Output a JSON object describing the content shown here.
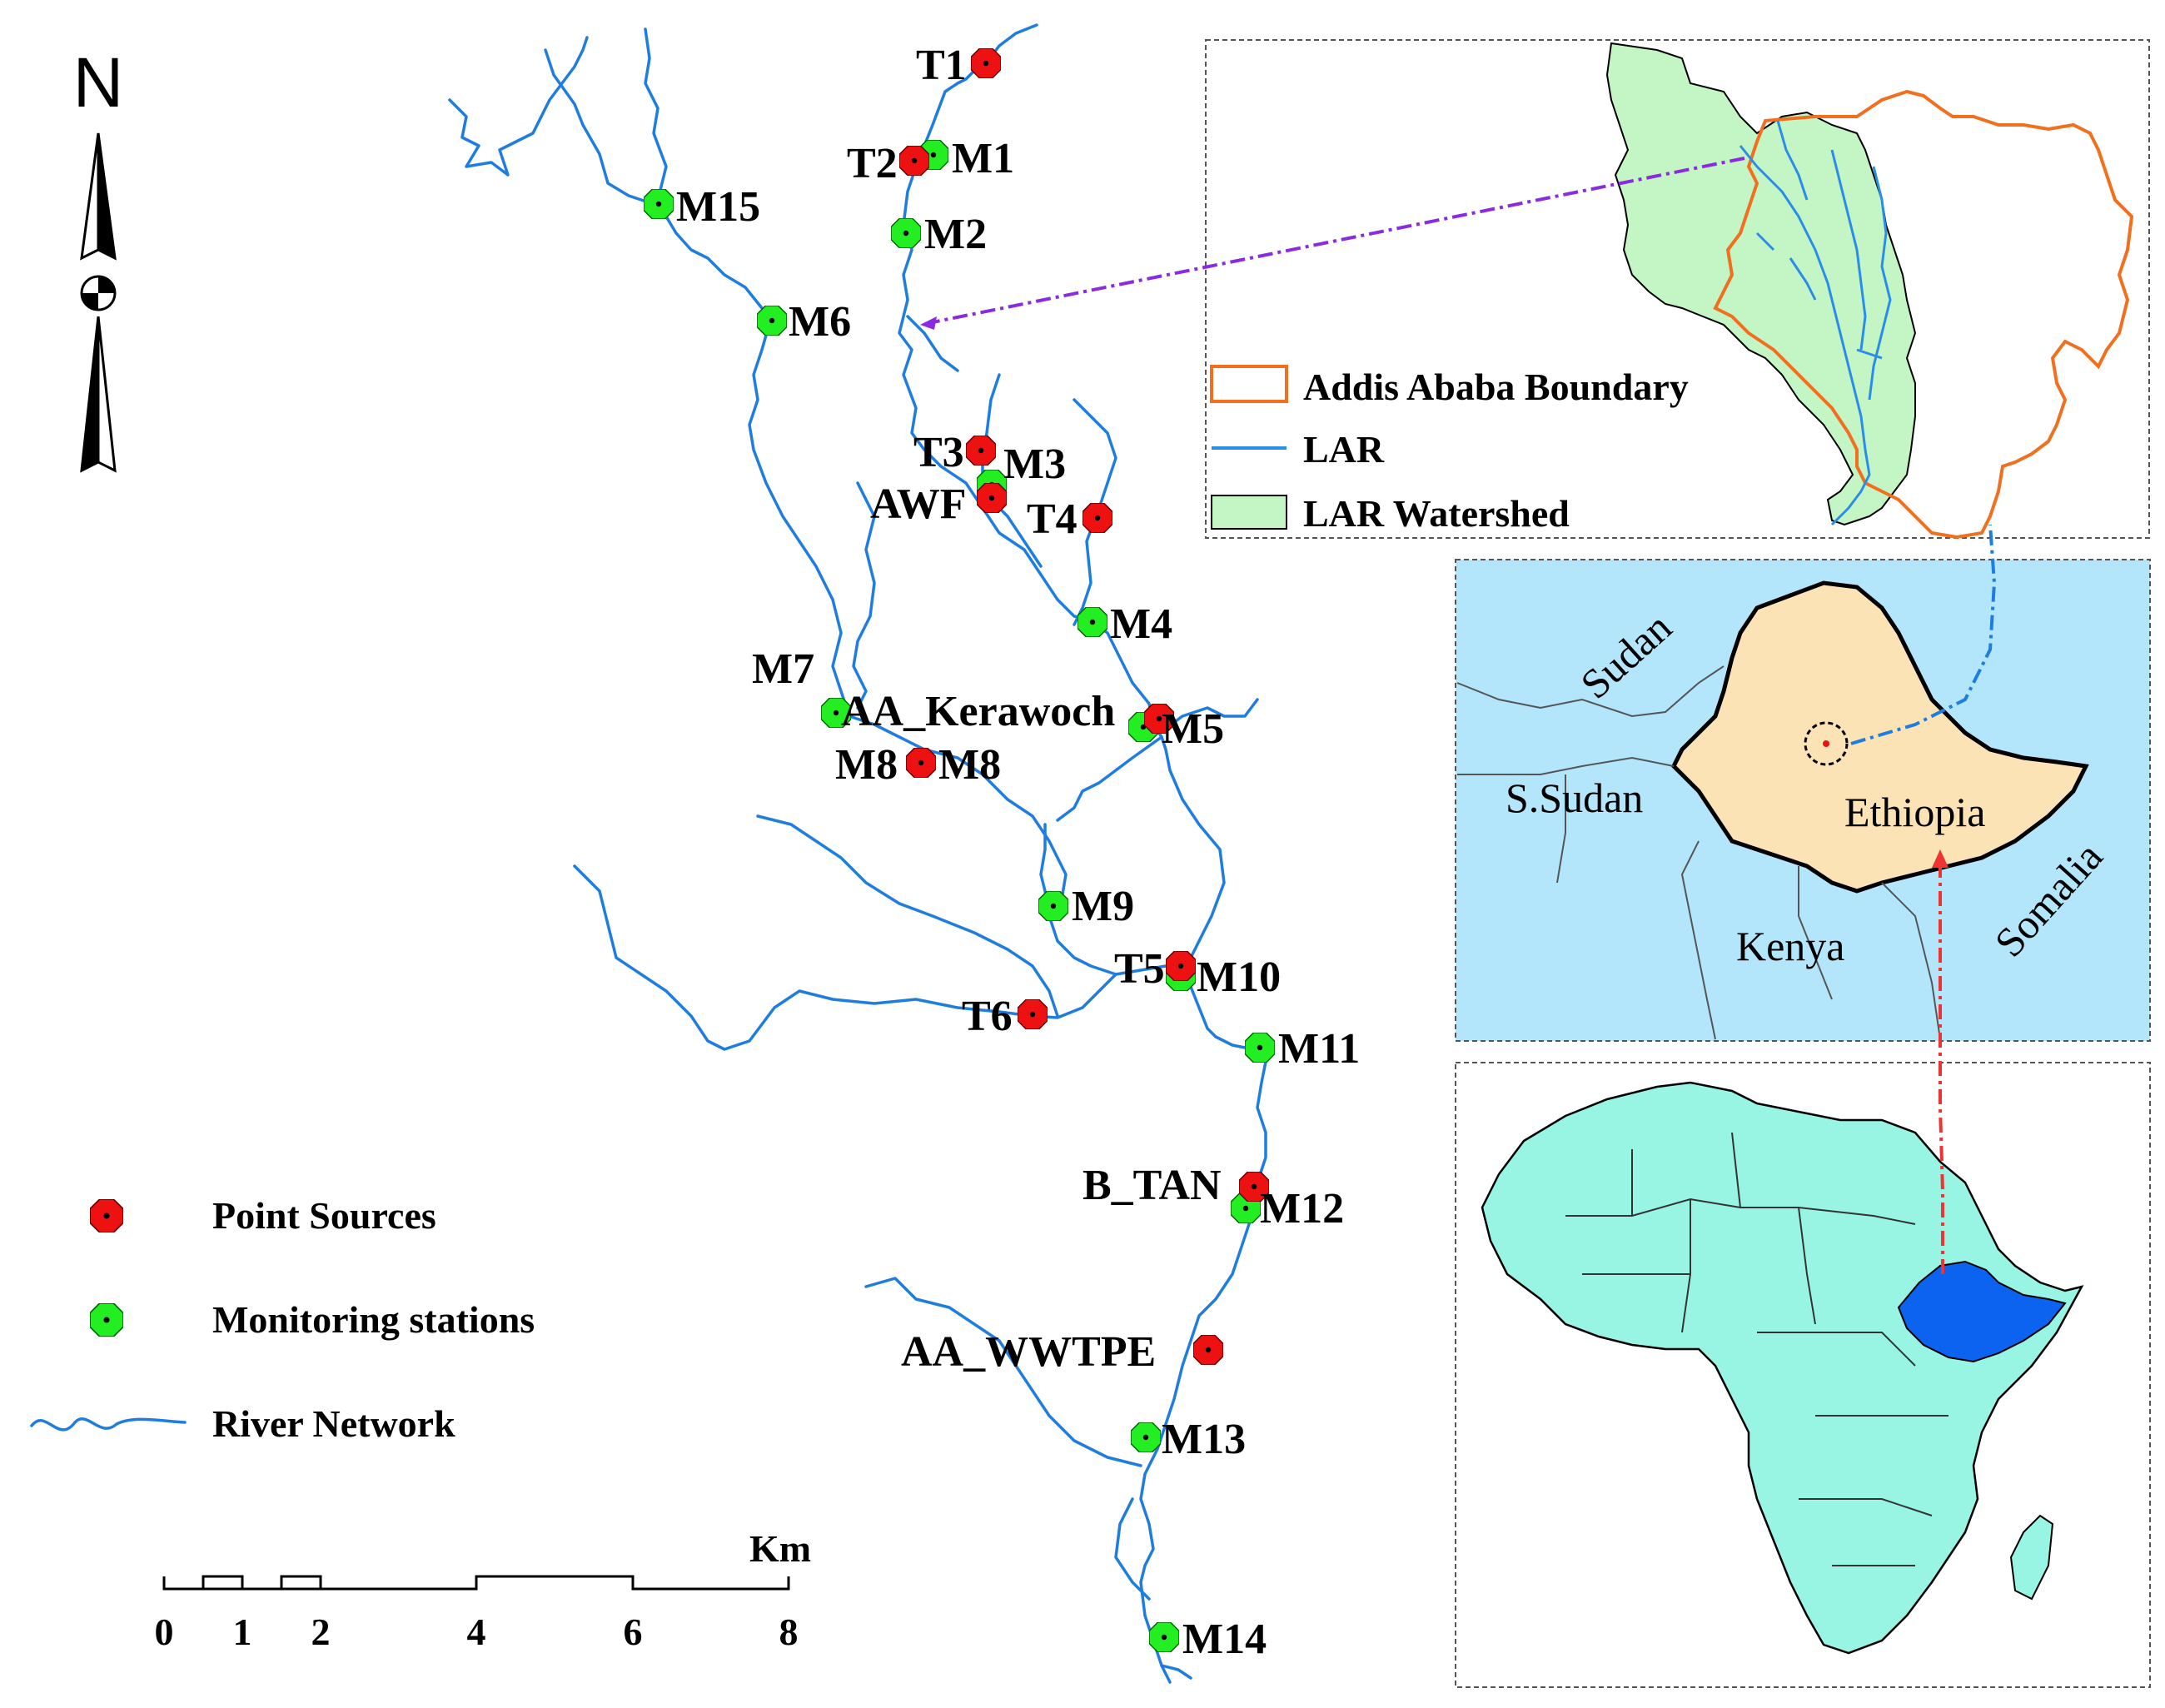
{
  "north_arrow": {
    "label": "N"
  },
  "legend": {
    "point_sources": "Point Sources",
    "monitoring_stations": "Monitoring stations",
    "river_network": "River Network"
  },
  "scale_bar": {
    "unit": "Km",
    "ticks": [
      "0",
      "1",
      "2",
      "4",
      "6",
      "8"
    ]
  },
  "inset_watershed": {
    "legend_boundary": "Addis Ababa Boundary",
    "legend_lar": "LAR",
    "legend_watershed": "LAR Watershed"
  },
  "inset_region": {
    "countries": [
      "Sudan",
      "S.Sudan",
      "Ethiopia",
      "Kenya",
      "Somalia"
    ]
  },
  "point_sources": [
    "T1",
    "T2",
    "T3",
    "AWF",
    "T4",
    "M8",
    "T5",
    "T6",
    "B_TAN",
    "AA_WWTPE"
  ],
  "monitoring_stations": [
    "M1",
    "M2",
    "M3",
    "M4",
    "M5",
    "M6",
    "M7",
    "M8",
    "M9",
    "M10",
    "M11",
    "M12",
    "M13",
    "M14",
    "M15",
    "AA_Kerawoch"
  ],
  "colors": {
    "point_source": "#ee1111",
    "monitoring_station": "#22ee22",
    "river": "#1f7de0",
    "water": "#b3e6fa",
    "ethiopia": "#fbe3b6",
    "africa": "#99f5e3",
    "ethiopia_highlight": "#0b63f0",
    "watershed": "#c4f5c4",
    "boundary": "#f07020"
  }
}
